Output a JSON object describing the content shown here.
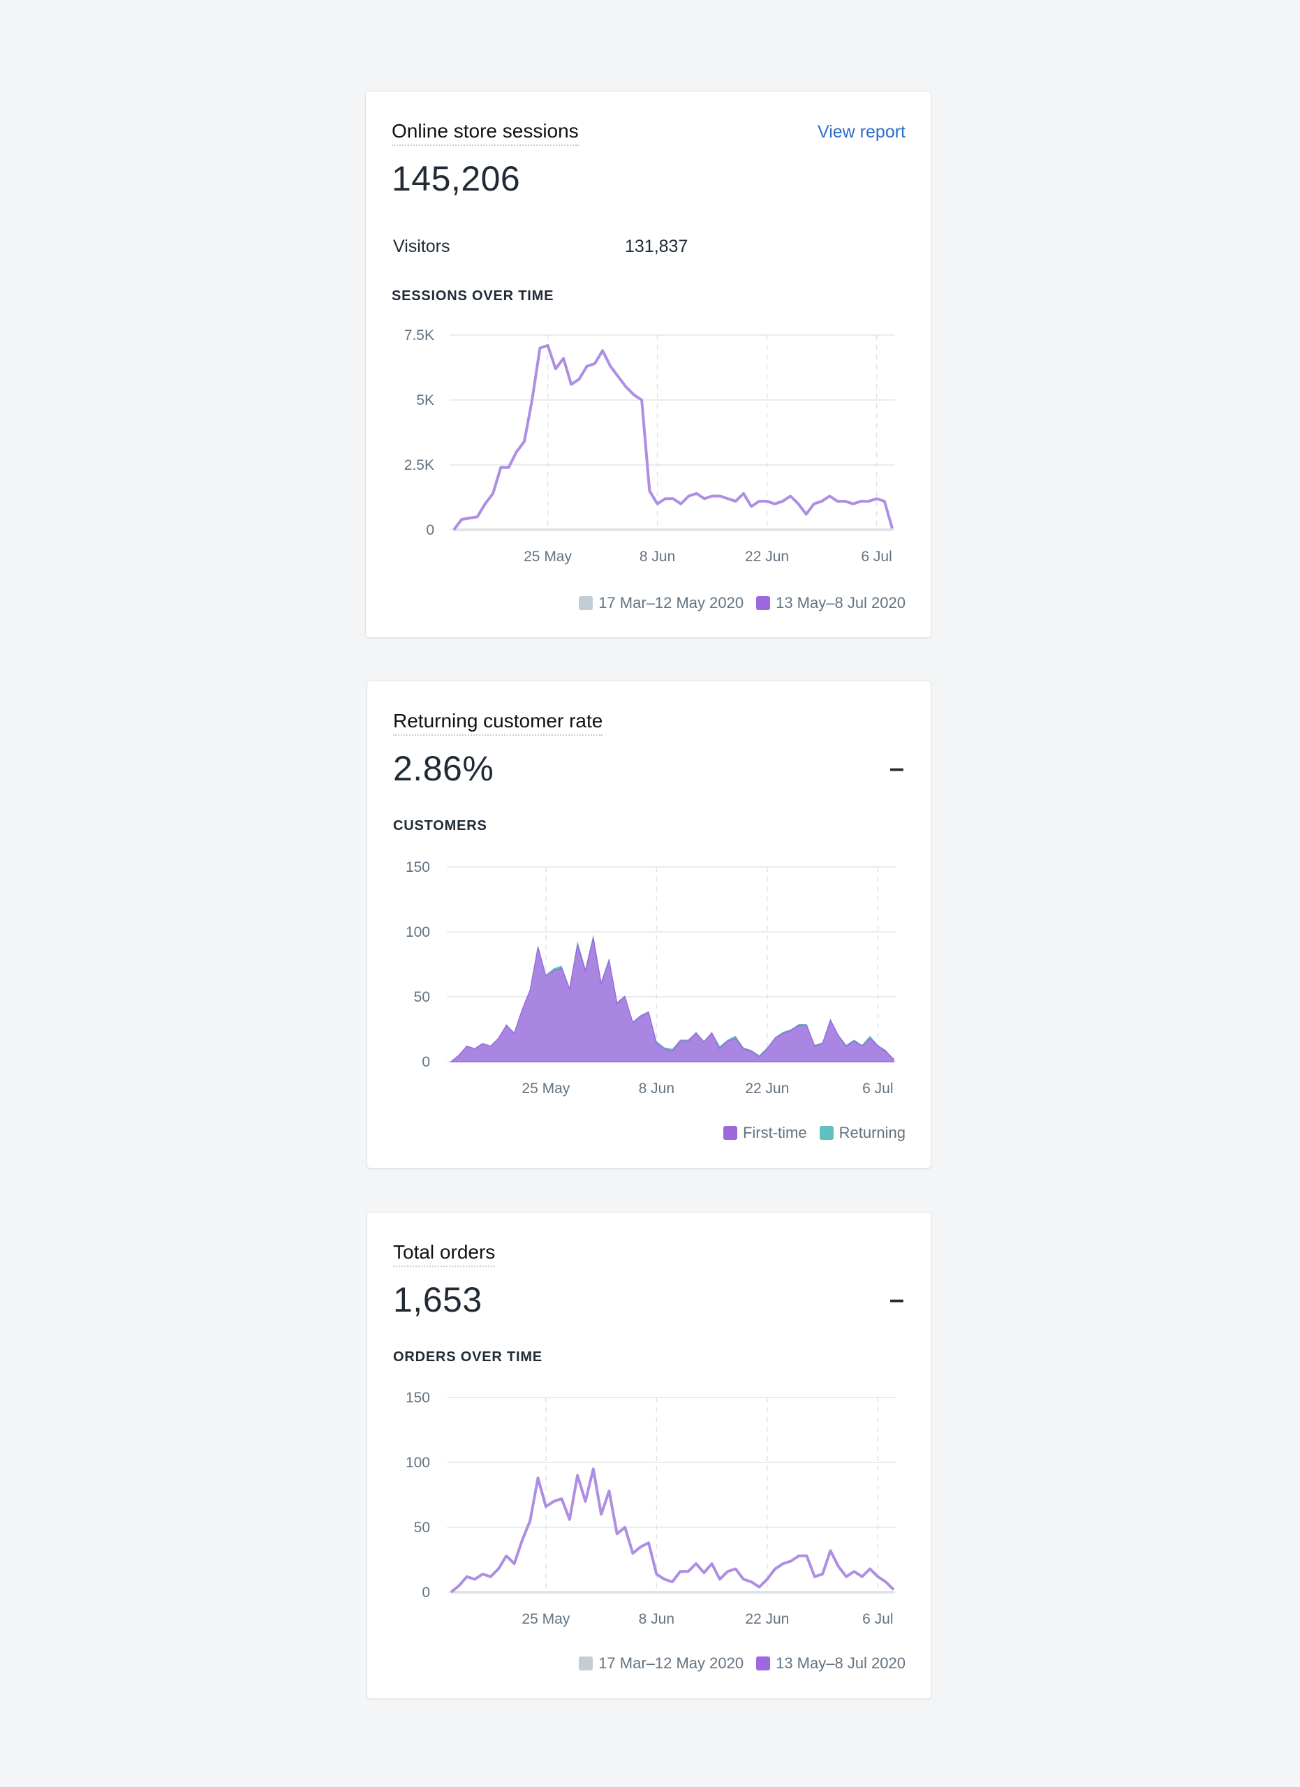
{
  "cards": [
    {
      "title": "Online store sessions",
      "link": "View report",
      "value": "145,206",
      "metric_label": "Visitors",
      "metric_value": "131,837",
      "subheading": "SESSIONS OVER TIME",
      "legend": [
        "17 Mar–12 May 2020",
        "13 May–8 Jul 2020"
      ]
    },
    {
      "title": "Returning customer rate",
      "value": "2.86%",
      "change": "–",
      "subheading": "CUSTOMERS",
      "legend": [
        "First-time",
        "Returning"
      ]
    },
    {
      "title": "Total orders",
      "value": "1,653",
      "change": "–",
      "subheading": "ORDERS OVER TIME",
      "legend": [
        "17 Mar–12 May 2020",
        "13 May–8 Jul 2020"
      ]
    }
  ],
  "colors": {
    "primary": "#9c6ade",
    "returning": "#5fc1bd",
    "previous": "#c4cdd5",
    "link": "#2c6ecb"
  },
  "chart_data": [
    {
      "type": "line",
      "title": "SESSIONS OVER TIME",
      "x_ticks": [
        "25 May",
        "8 Jun",
        "22 Jun",
        "6 Jul"
      ],
      "y_ticks": [
        "0",
        "2.5K",
        "5K",
        "7.5K"
      ],
      "ylim": [
        0,
        7500
      ],
      "x": [
        "13 May",
        "14 May",
        "15 May",
        "16 May",
        "17 May",
        "18 May",
        "19 May",
        "20 May",
        "21 May",
        "22 May",
        "23 May",
        "24 May",
        "25 May",
        "26 May",
        "27 May",
        "28 May",
        "29 May",
        "30 May",
        "31 May",
        "1 Jun",
        "2 Jun",
        "3 Jun",
        "4 Jun",
        "5 Jun",
        "6 Jun",
        "7 Jun",
        "8 Jun",
        "9 Jun",
        "10 Jun",
        "11 Jun",
        "12 Jun",
        "13 Jun",
        "14 Jun",
        "15 Jun",
        "16 Jun",
        "17 Jun",
        "18 Jun",
        "19 Jun",
        "20 Jun",
        "21 Jun",
        "22 Jun",
        "23 Jun",
        "24 Jun",
        "25 Jun",
        "26 Jun",
        "27 Jun",
        "28 Jun",
        "29 Jun",
        "30 Jun",
        "1 Jul",
        "2 Jul",
        "3 Jul",
        "4 Jul",
        "5 Jul",
        "6 Jul",
        "7 Jul",
        "8 Jul"
      ],
      "series": [
        {
          "name": "13 May–8 Jul 2020",
          "values": [
            0,
            400,
            450,
            500,
            1000,
            1400,
            2400,
            2400,
            3000,
            3400,
            5000,
            7000,
            7100,
            6200,
            6600,
            5600,
            5800,
            6300,
            6400,
            6900,
            6300,
            5900,
            5500,
            5200,
            5000,
            1500,
            1000,
            1200,
            1200,
            1000,
            1300,
            1400,
            1200,
            1300,
            1300,
            1200,
            1100,
            1400,
            900,
            1100,
            1100,
            1000,
            1100,
            1300,
            1000,
            600,
            1000,
            1100,
            1300,
            1100,
            1100,
            1000,
            1100,
            1100,
            1200,
            1100,
            50
          ]
        },
        {
          "name": "17 Mar–12 May 2020",
          "values": [
            0,
            0,
            0,
            0,
            0,
            0,
            0,
            0,
            0,
            0,
            0,
            0,
            0,
            0,
            0,
            0,
            0,
            0,
            0,
            0,
            0,
            0,
            0,
            0,
            0,
            0,
            0,
            0,
            0,
            0,
            0,
            0,
            0,
            0,
            0,
            0,
            0,
            0,
            0,
            0,
            0,
            0,
            0,
            0,
            0,
            0,
            0,
            0,
            0,
            0,
            0,
            0,
            0,
            0,
            0,
            0,
            0
          ]
        }
      ]
    },
    {
      "type": "area",
      "title": "CUSTOMERS",
      "x_ticks": [
        "25 May",
        "8 Jun",
        "22 Jun",
        "6 Jul"
      ],
      "y_ticks": [
        "0",
        "50",
        "100",
        "150"
      ],
      "ylim": [
        0,
        150
      ],
      "x": [
        "13 May",
        "14 May",
        "15 May",
        "16 May",
        "17 May",
        "18 May",
        "19 May",
        "20 May",
        "21 May",
        "22 May",
        "23 May",
        "24 May",
        "25 May",
        "26 May",
        "27 May",
        "28 May",
        "29 May",
        "30 May",
        "31 May",
        "1 Jun",
        "2 Jun",
        "3 Jun",
        "4 Jun",
        "5 Jun",
        "6 Jun",
        "7 Jun",
        "8 Jun",
        "9 Jun",
        "10 Jun",
        "11 Jun",
        "12 Jun",
        "13 Jun",
        "14 Jun",
        "15 Jun",
        "16 Jun",
        "17 Jun",
        "18 Jun",
        "19 Jun",
        "20 Jun",
        "21 Jun",
        "22 Jun",
        "23 Jun",
        "24 Jun",
        "25 Jun",
        "26 Jun",
        "27 Jun",
        "28 Jun",
        "29 Jun",
        "30 Jun",
        "1 Jul",
        "2 Jul",
        "3 Jul",
        "4 Jul",
        "5 Jul",
        "6 Jul",
        "7 Jul",
        "8 Jul"
      ],
      "series": [
        {
          "name": "First-time",
          "values": [
            0,
            5,
            12,
            10,
            14,
            12,
            18,
            28,
            22,
            40,
            55,
            88,
            66,
            70,
            72,
            56,
            90,
            70,
            95,
            60,
            78,
            45,
            50,
            30,
            35,
            38,
            14,
            10,
            8,
            16,
            16,
            22,
            15,
            22,
            10,
            16,
            18,
            10,
            8,
            4,
            10,
            18,
            22,
            24,
            28,
            28,
            12,
            14,
            32,
            20,
            12,
            16,
            12,
            18,
            12,
            8,
            2
          ]
        },
        {
          "name": "Returning",
          "values": [
            0,
            0,
            0,
            0,
            0,
            0,
            0,
            1,
            0,
            1,
            1,
            2,
            1,
            2,
            2,
            1,
            3,
            2,
            3,
            2,
            2,
            1,
            1,
            1,
            1,
            1,
            2,
            1,
            2,
            1,
            1,
            1,
            1,
            1,
            2,
            1,
            2,
            1,
            1,
            1,
            1,
            1,
            1,
            1,
            1,
            1,
            1,
            1,
            1,
            1,
            1,
            1,
            1,
            2,
            1,
            1,
            0
          ]
        }
      ]
    },
    {
      "type": "line",
      "title": "ORDERS OVER TIME",
      "x_ticks": [
        "25 May",
        "8 Jun",
        "22 Jun",
        "6 Jul"
      ],
      "y_ticks": [
        "0",
        "50",
        "100",
        "150"
      ],
      "ylim": [
        0,
        150
      ],
      "x": [
        "13 May",
        "14 May",
        "15 May",
        "16 May",
        "17 May",
        "18 May",
        "19 May",
        "20 May",
        "21 May",
        "22 May",
        "23 May",
        "24 May",
        "25 May",
        "26 May",
        "27 May",
        "28 May",
        "29 May",
        "30 May",
        "31 May",
        "1 Jun",
        "2 Jun",
        "3 Jun",
        "4 Jun",
        "5 Jun",
        "6 Jun",
        "7 Jun",
        "8 Jun",
        "9 Jun",
        "10 Jun",
        "11 Jun",
        "12 Jun",
        "13 Jun",
        "14 Jun",
        "15 Jun",
        "16 Jun",
        "17 Jun",
        "18 Jun",
        "19 Jun",
        "20 Jun",
        "21 Jun",
        "22 Jun",
        "23 Jun",
        "24 Jun",
        "25 Jun",
        "26 Jun",
        "27 Jun",
        "28 Jun",
        "29 Jun",
        "30 Jun",
        "1 Jul",
        "2 Jul",
        "3 Jul",
        "4 Jul",
        "5 Jul",
        "6 Jul",
        "7 Jul",
        "8 Jul"
      ],
      "series": [
        {
          "name": "13 May–8 Jul 2020",
          "values": [
            0,
            5,
            12,
            10,
            14,
            12,
            18,
            28,
            22,
            40,
            55,
            88,
            66,
            70,
            72,
            56,
            90,
            70,
            95,
            60,
            78,
            45,
            50,
            30,
            35,
            38,
            14,
            10,
            8,
            16,
            16,
            22,
            15,
            22,
            10,
            16,
            18,
            10,
            8,
            4,
            10,
            18,
            22,
            24,
            28,
            28,
            12,
            14,
            32,
            20,
            12,
            16,
            12,
            18,
            12,
            8,
            2
          ]
        },
        {
          "name": "17 Mar–12 May 2020",
          "values": [
            0,
            0,
            0,
            0,
            0,
            0,
            0,
            0,
            0,
            0,
            0,
            0,
            0,
            0,
            0,
            0,
            0,
            0,
            0,
            0,
            0,
            0,
            0,
            0,
            0,
            0,
            0,
            0,
            0,
            0,
            0,
            0,
            0,
            0,
            0,
            0,
            0,
            0,
            0,
            0,
            0,
            0,
            0,
            0,
            0,
            0,
            0,
            0,
            0,
            0,
            0,
            0,
            0,
            0,
            0,
            0,
            0
          ]
        }
      ]
    }
  ]
}
